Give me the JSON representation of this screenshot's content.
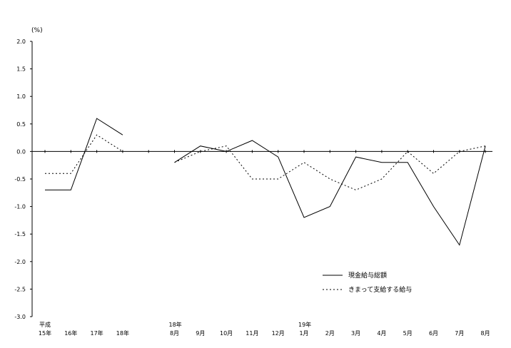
{
  "chart_data": {
    "type": "line",
    "unit_label": "(%)",
    "ylim": [
      -3.0,
      2.0
    ],
    "y_ticks": [
      "2.0",
      "1.5",
      "1.0",
      "0.5",
      "0.0",
      "-0.5",
      "-1.0",
      "-1.5",
      "-2.0",
      "-2.5",
      "-3.0"
    ],
    "y_tick_values": [
      2.0,
      1.5,
      1.0,
      0.5,
      0.0,
      -0.5,
      -1.0,
      -1.5,
      -2.0,
      -2.5,
      -3.0
    ],
    "categories": [
      {
        "top": "平成",
        "bottom": "15年"
      },
      {
        "top": "",
        "bottom": "16年"
      },
      {
        "top": "",
        "bottom": "17年"
      },
      {
        "top": "",
        "bottom": "18年"
      },
      {
        "top": "",
        "bottom": ""
      },
      {
        "top": "18年",
        "bottom": "8月"
      },
      {
        "top": "",
        "bottom": "9月"
      },
      {
        "top": "",
        "bottom": "10月"
      },
      {
        "top": "",
        "bottom": "11月"
      },
      {
        "top": "",
        "bottom": "12月"
      },
      {
        "top": "19年",
        "bottom": "1月"
      },
      {
        "top": "",
        "bottom": "2月"
      },
      {
        "top": "",
        "bottom": "3月"
      },
      {
        "top": "",
        "bottom": "4月"
      },
      {
        "top": "",
        "bottom": "5月"
      },
      {
        "top": "",
        "bottom": "6月"
      },
      {
        "top": "",
        "bottom": "7月"
      },
      {
        "top": "",
        "bottom": "8月"
      }
    ],
    "series": [
      {
        "name": "現金給与総額",
        "style": "solid",
        "color": "#000000",
        "values": [
          -0.7,
          -0.7,
          0.6,
          0.3,
          null,
          -0.2,
          0.1,
          0.0,
          0.2,
          -0.1,
          -1.2,
          -1.0,
          -0.1,
          -0.2,
          -0.2,
          -1.0,
          -1.7,
          0.1
        ]
      },
      {
        "name": "きまって支給する給与",
        "style": "dotted",
        "color": "#000000",
        "values": [
          -0.4,
          -0.4,
          0.3,
          0.0,
          null,
          -0.2,
          0.0,
          0.1,
          -0.5,
          -0.5,
          -0.2,
          -0.5,
          -0.7,
          -0.5,
          0.0,
          -0.4,
          0.0,
          0.1
        ]
      }
    ],
    "legend_position": "lower-right",
    "grid": false
  }
}
